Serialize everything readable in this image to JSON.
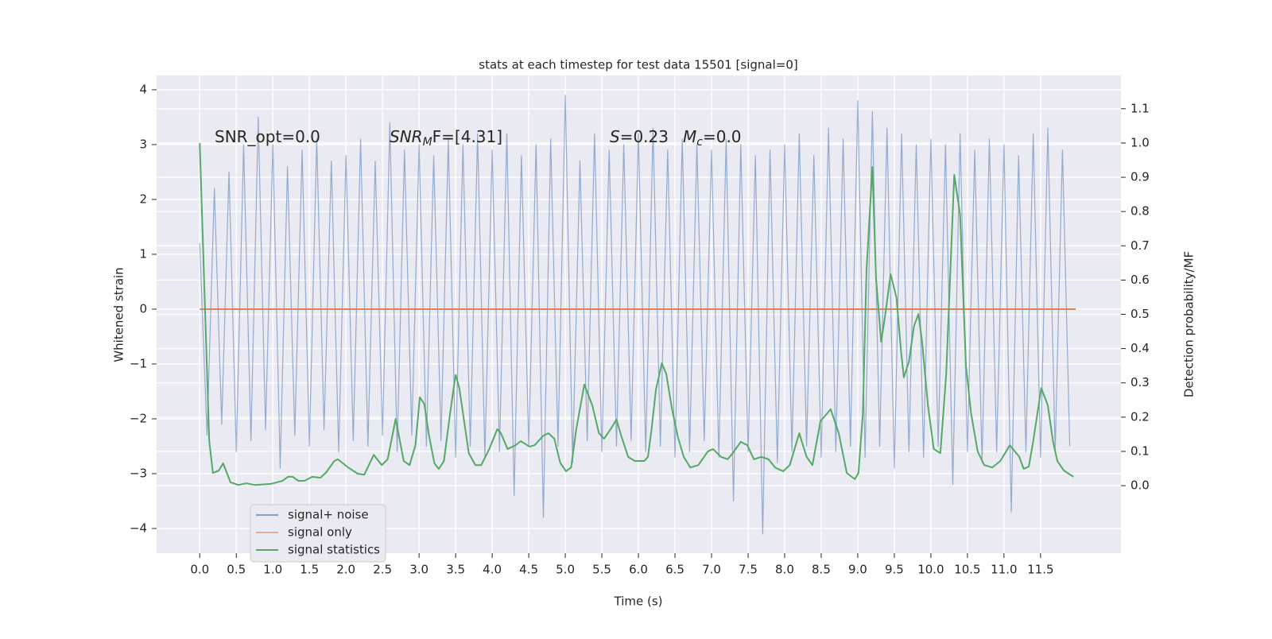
{
  "chart_data": {
    "type": "line",
    "title": "stats at each timestep for test data 15501 [signal=0]",
    "xlabel": "Time (s)",
    "ylabel": "Whitened strain",
    "y2label": "Detection probability/MF",
    "grid": true,
    "legend": "lower left",
    "annotations": [
      {
        "text": "SNR_opt=0.0"
      },
      {
        "text": "SNR",
        "sub": "M",
        "rest": "F=[4.31]"
      },
      {
        "text": "S",
        "rest": "=0.23"
      },
      {
        "text": "M",
        "sub": "c",
        "rest": "=0.0"
      }
    ],
    "xlim": [
      -0.59,
      12.6
    ],
    "xticks": [
      {
        "value": 0,
        "label": "0.0"
      },
      0.5,
      {
        "value": 1,
        "label": "1.0"
      },
      1.5,
      {
        "value": 2,
        "label": "2.0"
      },
      2.5,
      {
        "value": 3,
        "label": "3.0"
      },
      3.5,
      {
        "value": 4,
        "label": "4.0"
      },
      4.5,
      {
        "value": 5,
        "label": "5.0"
      },
      5.5,
      {
        "value": 6,
        "label": "6.0"
      },
      6.5,
      {
        "value": 7,
        "label": "7.0"
      },
      7.5,
      {
        "value": 8,
        "label": "8.0"
      },
      8.5,
      {
        "value": 9,
        "label": "9.0"
      },
      9.5,
      {
        "value": 10,
        "label": "10.0"
      },
      10.5,
      {
        "value": 11,
        "label": "11.0"
      },
      11.5
    ],
    "ylim": [
      -4.45,
      4.26
    ],
    "yticks": [
      {
        "value": -4,
        "label": "−4"
      },
      {
        "value": -3,
        "label": "−3"
      },
      {
        "value": -2,
        "label": "−2"
      },
      {
        "value": -1,
        "label": "−1"
      },
      0,
      1,
      2,
      3,
      4
    ],
    "y2lim": [
      -0.197,
      1.197
    ],
    "y2ticks": [
      {
        "value": 0,
        "label": "0.0"
      },
      0.1,
      0.2,
      0.3,
      0.4,
      0.5,
      0.6,
      0.7,
      0.8,
      0.9,
      {
        "value": 1,
        "label": "1.0"
      },
      1.1
    ],
    "series": [
      {
        "name": "signal+ noise",
        "color": "#4c72b0",
        "x": [
          0,
          0.1,
          0.2,
          0.3,
          0.4,
          0.5,
          0.6,
          0.7,
          0.8,
          0.9,
          1,
          1.1,
          1.2,
          1.3,
          1.4,
          1.5,
          1.6,
          1.7,
          1.8,
          1.9,
          2,
          2.1,
          2.2,
          2.3,
          2.4,
          2.5,
          2.6,
          2.7,
          2.8,
          2.9,
          3,
          3.1,
          3.2,
          3.3,
          3.4,
          3.5,
          3.6,
          3.7,
          3.8,
          3.9,
          4,
          4.1,
          4.2,
          4.3,
          4.4,
          4.5,
          4.6,
          4.7,
          4.8,
          4.9,
          5,
          5.1,
          5.2,
          5.3,
          5.4,
          5.5,
          5.6,
          5.7,
          5.8,
          5.9,
          6,
          6.1,
          6.2,
          6.3,
          6.4,
          6.5,
          6.6,
          6.7,
          6.8,
          6.9,
          7,
          7.1,
          7.2,
          7.3,
          7.4,
          7.5,
          7.6,
          7.7,
          7.8,
          7.9,
          8,
          8.1,
          8.2,
          8.3,
          8.4,
          8.5,
          8.6,
          8.7,
          8.8,
          8.9,
          9,
          9.1,
          9.2,
          9.3,
          9.4,
          9.5,
          9.6,
          9.7,
          9.8,
          9.9,
          10,
          10.1,
          10.2,
          10.3,
          10.4,
          10.5,
          10.6,
          10.7,
          10.8,
          10.9,
          11,
          11.1,
          11.2,
          11.3,
          11.4,
          11.5,
          11.6,
          11.7,
          11.8,
          11.9
        ],
        "values": [
          1.2,
          -2.3,
          2.2,
          -2.1,
          2.5,
          -2.6,
          3.0,
          -2.4,
          3.5,
          -2.2,
          3.0,
          -2.9,
          2.6,
          -2.3,
          2.9,
          -2.5,
          3.1,
          -2.2,
          2.7,
          -2.6,
          2.8,
          -2.4,
          3.1,
          -2.5,
          2.7,
          -2.3,
          3.4,
          -2.6,
          2.9,
          -2.3,
          3.0,
          -2.5,
          2.8,
          -2.4,
          3.1,
          -2.7,
          3.0,
          -2.5,
          3.2,
          -2.7,
          2.9,
          -2.6,
          3.2,
          -3.4,
          2.8,
          -2.5,
          3.0,
          -3.8,
          3.1,
          -2.5,
          3.9,
          -2.8,
          2.7,
          -2.4,
          3.2,
          -2.6,
          2.9,
          -2.5,
          3.0,
          -2.4,
          3.2,
          -2.6,
          3.3,
          -2.5,
          2.9,
          -2.7,
          3.1,
          -2.6,
          3.0,
          -2.4,
          2.9,
          -2.7,
          3.1,
          -3.5,
          3.0,
          -2.6,
          2.8,
          -4.1,
          2.9,
          -2.8,
          3.0,
          -2.6,
          3.2,
          -2.5,
          2.8,
          -2.7,
          3.3,
          -2.6,
          3.1,
          -2.5,
          3.8,
          -2.7,
          3.6,
          -2.5,
          3.3,
          -2.9,
          3.2,
          -2.6,
          3.0,
          -2.7,
          3.1,
          -2.5,
          3.0,
          -3.2,
          3.2,
          -2.6,
          2.9,
          -2.8,
          3.1,
          -2.6,
          3.0,
          -3.7,
          2.8,
          -2.6,
          3.2,
          -2.7,
          3.3,
          -2.6,
          2.9,
          -2.5
        ]
      },
      {
        "name": "signal only",
        "color": "#dd8452",
        "x": [
          0,
          11.98
        ],
        "values": [
          0,
          0
        ]
      },
      {
        "name": "signal statistics",
        "color": "#55a868",
        "axis": "y2",
        "x": [
          0,
          0.13,
          0.18,
          0.26,
          0.32,
          0.42,
          0.53,
          0.64,
          0.75,
          0.97,
          1.13,
          1.21,
          1.27,
          1.35,
          1.43,
          1.54,
          1.65,
          1.73,
          1.84,
          1.89,
          2.03,
          2.16,
          2.25,
          2.38,
          2.49,
          2.57,
          2.68,
          2.79,
          2.87,
          2.95,
          3.01,
          3.07,
          3.14,
          3.21,
          3.27,
          3.34,
          3.41,
          3.47,
          3.5,
          3.55,
          3.68,
          3.77,
          3.85,
          3.96,
          4.07,
          4.12,
          4.21,
          4.32,
          4.39,
          4.51,
          4.58,
          4.7,
          4.77,
          4.85,
          4.93,
          5.01,
          5.08,
          5.15,
          5.26,
          5.37,
          5.46,
          5.53,
          5.62,
          5.7,
          5.77,
          5.86,
          5.95,
          6.08,
          6.13,
          6.18,
          6.24,
          6.32,
          6.38,
          6.46,
          6.54,
          6.62,
          6.71,
          6.82,
          6.95,
          7.02,
          7.13,
          7.22,
          7.29,
          7.4,
          7.49,
          7.58,
          7.68,
          7.78,
          7.87,
          7.98,
          8.07,
          8.2,
          8.3,
          8.38,
          8.49,
          8.63,
          8.74,
          8.85,
          8.96,
          9.01,
          9.07,
          9.12,
          9.2,
          9.25,
          9.32,
          9.37,
          9.45,
          9.53,
          9.59,
          9.63,
          9.7,
          9.77,
          9.83,
          9.88,
          9.96,
          10.04,
          10.13,
          10.21,
          10.32,
          10.4,
          10.48,
          10.55,
          10.64,
          10.73,
          10.84,
          10.95,
          11.08,
          11.21,
          11.27,
          11.34,
          11.4,
          11.51,
          11.6,
          11.67,
          11.73,
          11.82,
          11.95
        ],
        "values": [
          1.0,
          0.13,
          0.037,
          0.044,
          0.065,
          0.01,
          0.002,
          0.007,
          0.002,
          0.005,
          0.014,
          0.026,
          0.026,
          0.014,
          0.014,
          0.026,
          0.023,
          0.039,
          0.072,
          0.077,
          0.053,
          0.035,
          0.032,
          0.09,
          0.06,
          0.077,
          0.195,
          0.072,
          0.06,
          0.118,
          0.258,
          0.239,
          0.142,
          0.065,
          0.049,
          0.072,
          0.188,
          0.281,
          0.323,
          0.285,
          0.095,
          0.06,
          0.06,
          0.107,
          0.165,
          0.153,
          0.107,
          0.118,
          0.13,
          0.114,
          0.118,
          0.146,
          0.153,
          0.137,
          0.067,
          0.042,
          0.053,
          0.165,
          0.295,
          0.234,
          0.153,
          0.137,
          0.165,
          0.193,
          0.142,
          0.084,
          0.072,
          0.072,
          0.084,
          0.165,
          0.281,
          0.357,
          0.327,
          0.223,
          0.142,
          0.084,
          0.053,
          0.06,
          0.1,
          0.107,
          0.084,
          0.077,
          0.095,
          0.128,
          0.118,
          0.077,
          0.084,
          0.077,
          0.053,
          0.042,
          0.06,
          0.153,
          0.084,
          0.06,
          0.188,
          0.223,
          0.153,
          0.037,
          0.019,
          0.037,
          0.211,
          0.629,
          0.93,
          0.606,
          0.42,
          0.49,
          0.617,
          0.548,
          0.397,
          0.316,
          0.362,
          0.466,
          0.501,
          0.42,
          0.234,
          0.107,
          0.095,
          0.327,
          0.907,
          0.791,
          0.35,
          0.211,
          0.1,
          0.06,
          0.053,
          0.072,
          0.118,
          0.084,
          0.049,
          0.056,
          0.13,
          0.285,
          0.234,
          0.13,
          0.072,
          0.044,
          0.026
        ]
      }
    ]
  }
}
